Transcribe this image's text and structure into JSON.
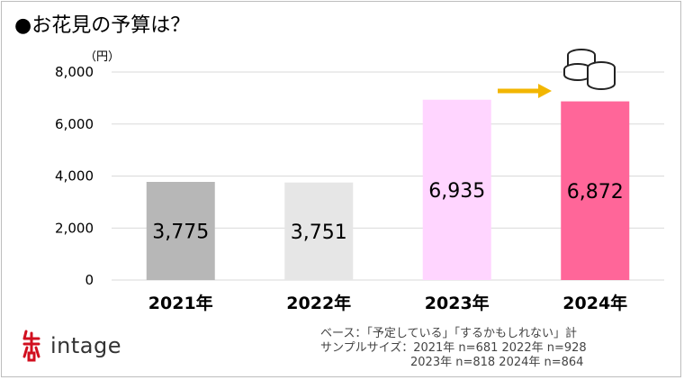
{
  "title": "●お花見の予算は？",
  "unit_label": "（円）",
  "chart_data": {
    "type": "bar",
    "title": "●お花見の予算は？",
    "categories": [
      "2021年",
      "2022年",
      "2023年",
      "2024年"
    ],
    "values": [
      3775,
      3751,
      6935,
      6872
    ],
    "value_labels": [
      "3,775",
      "3,751",
      "6,935",
      "6,872"
    ],
    "bar_colors": [
      "#b7b7b7",
      "#e6e6e6",
      "#ffd5ff",
      "#ff6699"
    ],
    "ylim": [
      0,
      8000
    ],
    "yticks": [
      0,
      2000,
      4000,
      6000,
      8000
    ],
    "ytick_labels": [
      "0",
      "2,000",
      "4,000",
      "6,000",
      "8,000"
    ],
    "ylabel": "（円）",
    "xlabel": "",
    "grid": true,
    "legend": "none",
    "annotations": [
      "arrow-2023-to-2024",
      "coins-icon"
    ]
  },
  "colors": {
    "arrow": "#f2b600",
    "grid": "#d9d9d9"
  },
  "brand": {
    "name": "intage",
    "logo_icon": "intage-logo-icon"
  },
  "notes": {
    "line1": "ベース：「予定している」「するかもしれない」計",
    "line2": "サンプルサイズ：2021年 n=681  2022年 n=928",
    "line3": "2023年 n=818  2024年 n=864"
  }
}
